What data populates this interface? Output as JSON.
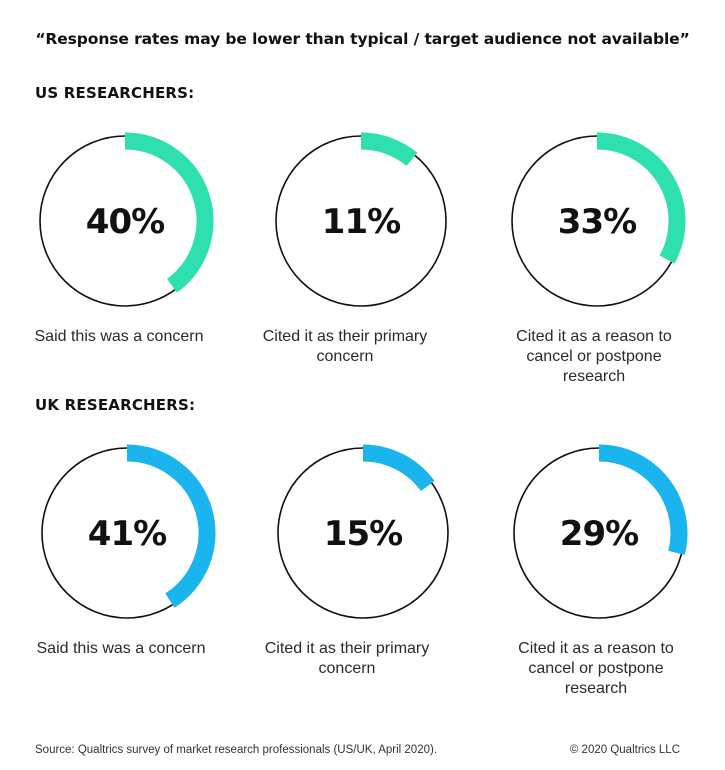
{
  "title": "“Response rates may be lower than typical / target audience not available”",
  "sections": [
    {
      "label": "US RESEARCHERS:",
      "color": "#2ee0ae"
    },
    {
      "label": "UK RESEARCHERS:",
      "color": "#1ab4ee"
    }
  ],
  "chart_data": [
    {
      "type": "pie",
      "title": "US RESEARCHERS:",
      "categories": [
        "Said this was a concern",
        "Cited it as their primary concern",
        "Cited it as a reason to cancel or postpone research"
      ],
      "values": [
        40,
        11,
        33
      ],
      "value_labels": [
        "40%",
        "11%",
        "33%"
      ],
      "color": "#2ee0ae"
    },
    {
      "type": "pie",
      "title": "UK RESEARCHERS:",
      "categories": [
        "Said this was a concern",
        "Cited it as their primary concern",
        "Cited it as a reason to cancel or postpone research"
      ],
      "values": [
        41,
        15,
        29
      ],
      "value_labels": [
        "41%",
        "15%",
        "29%"
      ],
      "color": "#1ab4ee"
    }
  ],
  "captions": {
    "us": [
      "Said this was a concern",
      "Cited it as their primary concern",
      "Cited it as a reason to cancel or postpone research"
    ],
    "uk": [
      "Said this was a concern",
      "Cited it as their primary concern",
      "Cited it as a reason to cancel or postpone research"
    ]
  },
  "footer": {
    "source": "Source: Qualtrics survey of market research professionals (US/UK, April 2020).",
    "copyright": "© 2020 Qualtrics LLC"
  }
}
